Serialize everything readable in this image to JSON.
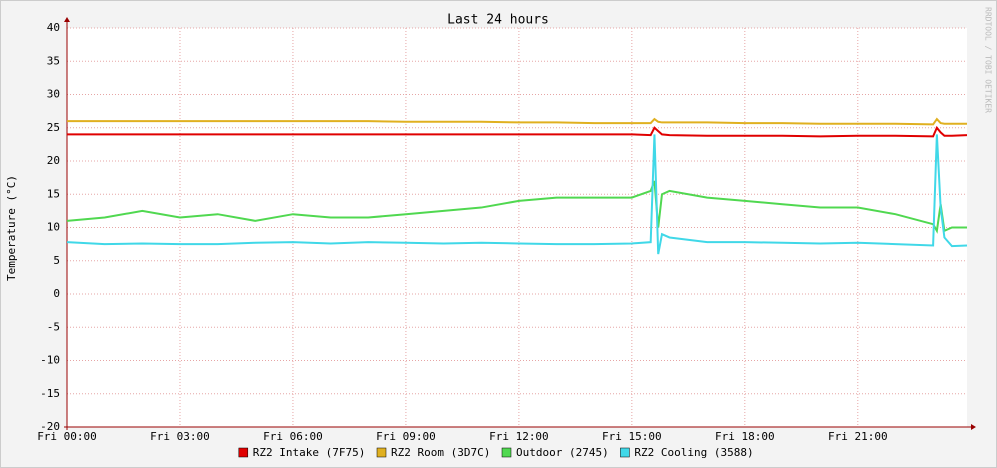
{
  "chart_data": {
    "type": "line",
    "title": "Last 24 hours",
    "y_label": "Temperature (°C)",
    "watermark": "RRDTOOL / TOBI OETIKER",
    "x": [
      0,
      1,
      2,
      3,
      4,
      5,
      6,
      7,
      8,
      9,
      10,
      11,
      12,
      13,
      14,
      15,
      15.5,
      15.6,
      15.7,
      15.8,
      16,
      17,
      18,
      19,
      20,
      21,
      22,
      23,
      23.1,
      23.2,
      23.3,
      23.5,
      23.9
    ],
    "xlim": [
      0,
      23.9
    ],
    "xticks": [
      {
        "value": 0,
        "label": "Fri 00:00"
      },
      {
        "value": 3,
        "label": "Fri 03:00"
      },
      {
        "value": 6,
        "label": "Fri 06:00"
      },
      {
        "value": 9,
        "label": "Fri 09:00"
      },
      {
        "value": 12,
        "label": "Fri 12:00"
      },
      {
        "value": 15,
        "label": "Fri 15:00"
      },
      {
        "value": 18,
        "label": "Fri 18:00"
      },
      {
        "value": 21,
        "label": "Fri 21:00"
      }
    ],
    "ylim": [
      -20,
      40
    ],
    "yticks": [
      -20,
      -15,
      -10,
      -5,
      0,
      5,
      10,
      15,
      20,
      25,
      30,
      35,
      40
    ],
    "grid": true,
    "legend": "bottom",
    "series": [
      {
        "name": "RZ2 Intake (7F75)",
        "color": "#e00000",
        "values": [
          24,
          24,
          24,
          24,
          24,
          24,
          24,
          24,
          24,
          24,
          24,
          24,
          24,
          24,
          24,
          24,
          23.9,
          25,
          24.5,
          24,
          23.9,
          23.8,
          23.8,
          23.8,
          23.7,
          23.8,
          23.8,
          23.7,
          25,
          24.3,
          23.8,
          23.8,
          23.9
        ]
      },
      {
        "name": "RZ2 Room (3D7C)",
        "color": "#e0b020",
        "values": [
          26,
          26,
          26,
          26,
          26,
          26,
          26,
          26,
          26,
          25.9,
          25.9,
          25.9,
          25.8,
          25.8,
          25.7,
          25.7,
          25.7,
          26.3,
          25.9,
          25.8,
          25.8,
          25.8,
          25.7,
          25.7,
          25.6,
          25.6,
          25.6,
          25.5,
          26.3,
          25.7,
          25.6,
          25.6,
          25.6
        ]
      },
      {
        "name": "Outdoor (2745)",
        "color": "#50d850",
        "values": [
          11,
          11.5,
          12.5,
          11.5,
          12,
          11,
          12,
          11.5,
          11.5,
          12,
          12.5,
          13,
          14,
          14.5,
          14.5,
          14.5,
          15.5,
          17,
          10,
          15,
          15.5,
          14.5,
          14,
          13.5,
          13,
          13,
          12,
          10.5,
          9.5,
          13.5,
          9.5,
          10,
          10
        ]
      },
      {
        "name": "RZ2 Cooling (3588)",
        "color": "#40d8e8",
        "values": [
          7.8,
          7.5,
          7.6,
          7.5,
          7.5,
          7.7,
          7.8,
          7.6,
          7.8,
          7.7,
          7.6,
          7.7,
          7.6,
          7.5,
          7.5,
          7.6,
          7.8,
          24,
          6,
          9,
          8.5,
          7.8,
          7.8,
          7.7,
          7.6,
          7.7,
          7.5,
          7.3,
          24,
          13,
          8.5,
          7.2,
          7.3
        ]
      }
    ]
  }
}
